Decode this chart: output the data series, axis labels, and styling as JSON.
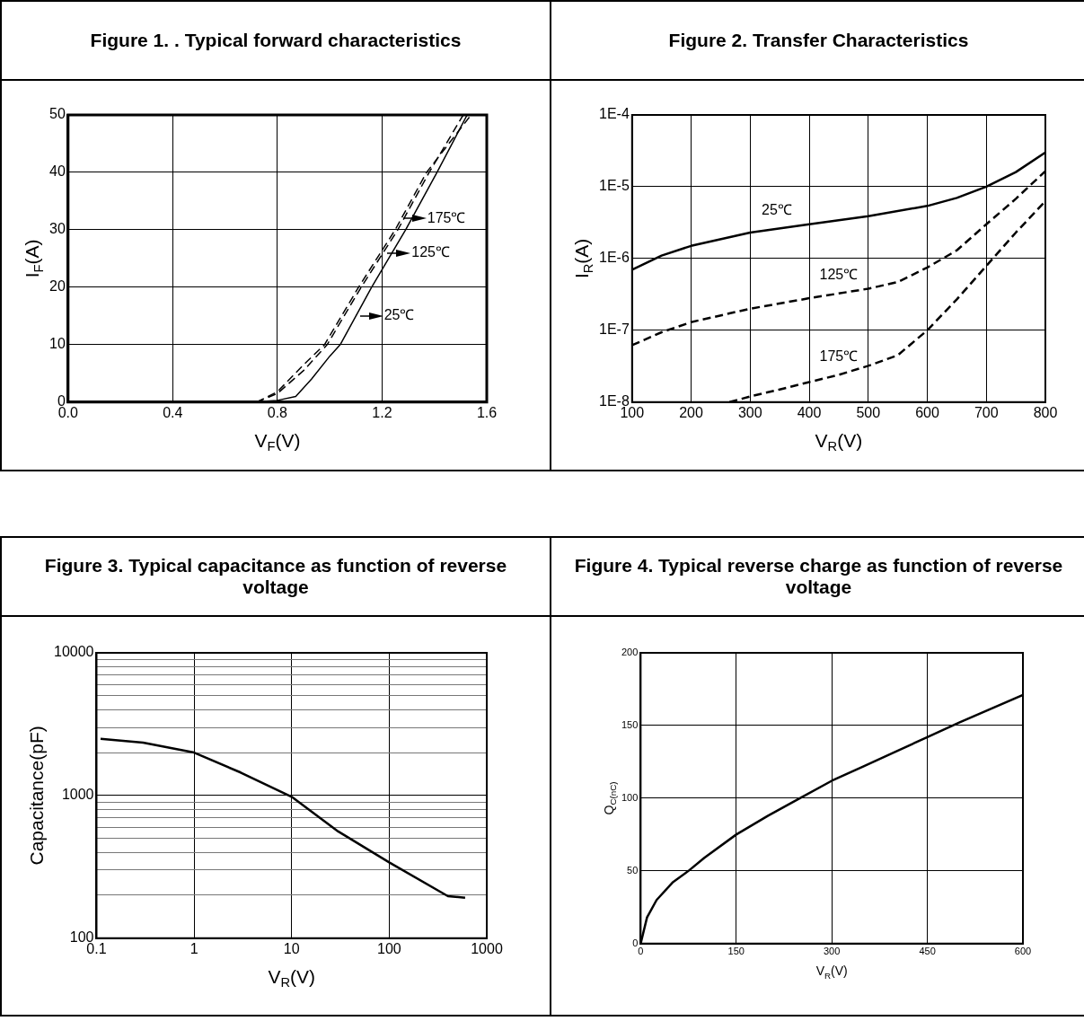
{
  "chart_data": [
    {
      "type": "line",
      "title": "Figure 1. . Typical forward characteristics",
      "xlabel": "V$_{F}$(V)",
      "ylabel": "I$_{F}$(A)",
      "xlim": [
        0,
        1.6
      ],
      "ylim": [
        0,
        50
      ],
      "xticks": [
        {
          "value": 0,
          "label": "0.0"
        },
        0.4,
        0.8,
        1.2,
        1.6
      ],
      "yticks": [
        0,
        10,
        20,
        30,
        40,
        50
      ],
      "grid": true,
      "legend": false,
      "series": [
        {
          "color": "#000000",
          "line_style": "solid",
          "x": [
            0.7,
            0.8,
            0.87,
            0.93,
            1.0,
            1.04,
            1.16,
            1.29,
            1.41,
            1.525
          ],
          "values": [
            0,
            0.3,
            1,
            4,
            8,
            10,
            20,
            30,
            40,
            50
          ]
        },
        {
          "color": "#000000",
          "line_style": "dashed",
          "x": [
            0.72,
            0.8,
            0.9,
            0.99,
            1.12,
            1.26,
            1.38,
            1.51
          ],
          "values": [
            0,
            1.5,
            5.5,
            10,
            20,
            30,
            40,
            50
          ]
        },
        {
          "color": "#000000",
          "line_style": "dashed",
          "x": [
            0.72,
            0.8,
            0.9,
            0.98,
            1.11,
            1.25,
            1.37,
            1.54
          ],
          "values": [
            0,
            1.8,
            6.5,
            10,
            20,
            30,
            40,
            50
          ]
        }
      ],
      "annotations": [
        {
          "text": "175℃",
          "x": 1.28,
          "y": 32
        },
        {
          "text": "125℃",
          "x": 1.22,
          "y": 26
        },
        {
          "text": "25℃",
          "x": 1.115,
          "y": 15
        }
      ]
    },
    {
      "type": "line",
      "title": "Figure 2. Transfer Characteristics",
      "xlabel": "V$_{R}$(V)",
      "ylabel": "I$_{R}$(A)",
      "log": "y",
      "xlim": [
        100,
        800
      ],
      "ylim": [
        1e-08,
        0.0001
      ],
      "xticks": [
        100,
        200,
        300,
        400,
        500,
        600,
        700,
        800
      ],
      "yticks": [
        {
          "value": 1e-08,
          "label": "1E-8"
        },
        {
          "value": 1e-07,
          "label": "1E-7"
        },
        {
          "value": 1e-06,
          "label": "1E-6"
        },
        {
          "value": 1e-05,
          "label": "1E-5"
        },
        {
          "value": 0.0001,
          "label": "1E-4"
        }
      ],
      "grid": true,
      "legend": false,
      "series": [
        {
          "color": "#000000",
          "line_style": "solid",
          "x": [
            100,
            150,
            200,
            300,
            400,
            500,
            600,
            650,
            700,
            750,
            800
          ],
          "values": [
            7e-07,
            1.1e-06,
            1.5e-06,
            2.3e-06,
            3e-06,
            3.9e-06,
            5.4e-06,
            7e-06,
            1e-05,
            1.6e-05,
            3e-05
          ]
        },
        {
          "color": "#000000",
          "line_style": "dashed",
          "x": [
            100,
            150,
            200,
            300,
            400,
            500,
            550,
            600,
            650,
            700,
            750,
            800
          ],
          "values": [
            6.2e-08,
            9.4e-08,
            1.3e-07,
            2e-07,
            2.8e-07,
            3.8e-07,
            4.7e-07,
            7.5e-07,
            1.3e-06,
            3e-06,
            6.8e-06,
            1.65e-05
          ]
        },
        {
          "color": "#000000",
          "line_style": "dashed",
          "x": [
            265,
            300,
            350,
            400,
            450,
            500,
            550,
            600,
            650,
            700,
            750,
            800
          ],
          "values": [
            1e-08,
            1.2e-08,
            1.5e-08,
            1.9e-08,
            2.4e-08,
            3.2e-08,
            4.5e-08,
            1e-07,
            2.7e-07,
            7.9e-07,
            2.3e-06,
            6.3e-06
          ]
        }
      ],
      "annotations": [
        "25℃",
        "125℃",
        "175℃"
      ]
    },
    {
      "type": "line",
      "title": "Figure 3. Typical capacitance as function of reverse voltage",
      "xlabel": "V$_{R}$(V)",
      "ylabel": "Capacitance(pF)",
      "log": "xy",
      "xlim": [
        0.1,
        1000
      ],
      "ylim": [
        100,
        10000
      ],
      "xticks": [
        0.1,
        1,
        10,
        100,
        1000
      ],
      "yticks": [
        100,
        {
          "value": 200,
          "label": null
        },
        {
          "value": 300,
          "label": null
        },
        {
          "value": 400,
          "label": null
        },
        {
          "value": 500,
          "label": null
        },
        {
          "value": 600,
          "label": null
        },
        {
          "value": 700,
          "label": null
        },
        {
          "value": 800,
          "label": null
        },
        {
          "value": 900,
          "label": null
        },
        1000,
        {
          "value": 2000,
          "label": null
        },
        {
          "value": 3000,
          "label": null
        },
        {
          "value": 4000,
          "label": null
        },
        {
          "value": 5000,
          "label": null
        },
        {
          "value": 6000,
          "label": null
        },
        {
          "value": 7000,
          "label": null
        },
        {
          "value": 8000,
          "label": null
        },
        {
          "value": 9000,
          "label": null
        },
        10000
      ],
      "grid": true,
      "legend": false,
      "series": [
        {
          "color": "#000000",
          "line_style": "solid",
          "x": [
            0.11,
            0.3,
            1,
            3,
            10,
            30,
            100,
            400,
            600
          ],
          "values": [
            2500,
            2350,
            2000,
            1450,
            980,
            560,
            340,
            197,
            192
          ]
        }
      ]
    },
    {
      "type": "line",
      "title": "Figure 4. Typical reverse charge as function of reverse voltage",
      "xlabel": "V$_{R}$(V)",
      "ylabel": "Q$_{C(nC)}$",
      "xlim": [
        0,
        600
      ],
      "ylim": [
        0,
        200
      ],
      "xticks": [
        0,
        150,
        300,
        450,
        600
      ],
      "yticks": [
        0,
        50,
        100,
        150,
        200
      ],
      "grid": true,
      "legend": false,
      "series": [
        {
          "color": "#000000",
          "line_style": "solid",
          "x": [
            0,
            10,
            25,
            50,
            75,
            100,
            150,
            200,
            250,
            300,
            350,
            400,
            450,
            500,
            600
          ],
          "values": [
            0,
            18,
            30,
            42,
            50,
            59,
            75,
            88,
            100,
            112,
            122,
            132,
            142,
            152,
            171
          ]
        }
      ]
    }
  ]
}
